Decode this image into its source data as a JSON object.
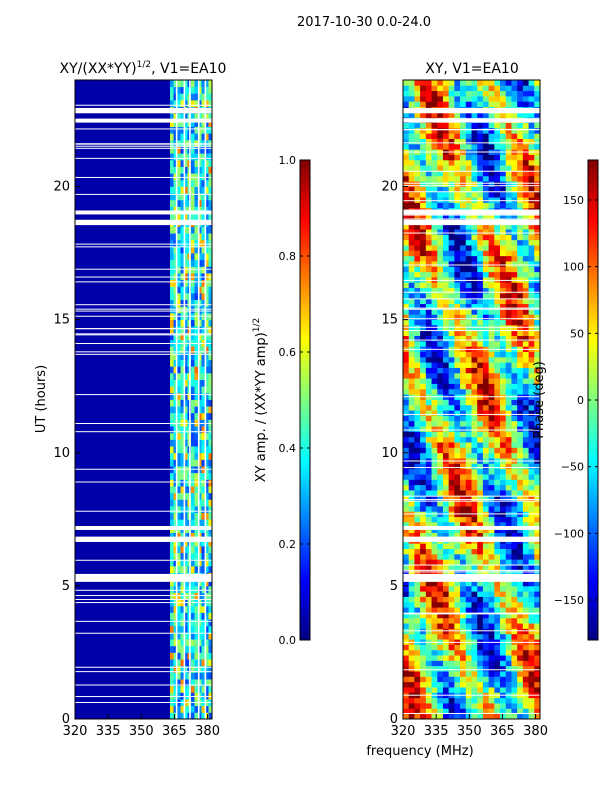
{
  "suptitle": "2017-10-30 0.0-24.0",
  "xlabel_shared": "frequency (MHz)",
  "chart_data": [
    {
      "type": "heatmap",
      "title_prefix": "XY/(XX*YY)",
      "title_sup": "1/2",
      "title_suffix": ", V1=EA10",
      "ylabel": "UT (hours)",
      "xlim": [
        320,
        382
      ],
      "ylim": [
        0,
        24
      ],
      "xticks": [
        "320",
        "335",
        "350",
        "365",
        "380"
      ],
      "xtick_values": [
        320,
        335,
        350,
        365,
        380
      ],
      "yticks": [
        "0",
        "5",
        "10",
        "15",
        "20"
      ],
      "ytick_values": [
        0,
        5,
        10,
        15,
        20
      ],
      "colorbar": {
        "label_prefix": "XY amp. / (XX*YY amp)",
        "label_sup": "1/2",
        "range": [
          0.0,
          1.0
        ],
        "ticks": [
          "0.0",
          "0.2",
          "0.4",
          "0.6",
          "0.8",
          "1.0"
        ],
        "tick_values": [
          0.0,
          0.2,
          0.4,
          0.6,
          0.8,
          1.0
        ],
        "colormap": "jet"
      },
      "gap_hours": [
        [
          5.15,
          5.45
        ],
        [
          6.65,
          6.85
        ],
        [
          7.1,
          7.25
        ],
        [
          18.55,
          18.75
        ],
        [
          18.95,
          19.1
        ],
        [
          22.4,
          22.55
        ],
        [
          22.75,
          22.95
        ]
      ],
      "signal_band_mhz": [
        363,
        382
      ],
      "rfi_channels_mhz": [
        366,
        369.5,
        372,
        376,
        379
      ]
    },
    {
      "type": "heatmap",
      "title": "XY, V1=EA10",
      "xlim": [
        320,
        382
      ],
      "ylim": [
        0,
        24
      ],
      "xticks": [
        "320",
        "335",
        "350",
        "365",
        "380"
      ],
      "xtick_values": [
        320,
        335,
        350,
        365,
        380
      ],
      "yticks": [
        "0",
        "5",
        "10",
        "15",
        "20"
      ],
      "ytick_values": [
        0,
        5,
        10,
        15,
        20
      ],
      "colorbar": {
        "label": "Phase (deg)",
        "range": [
          -180,
          180
        ],
        "ticks": [
          "150",
          "100",
          "50",
          "0",
          "−50",
          "−100",
          "−150"
        ],
        "tick_values": [
          150,
          100,
          50,
          0,
          -50,
          -100,
          -150
        ],
        "colormap": "jet"
      },
      "gap_hours": [
        [
          5.15,
          5.45
        ],
        [
          6.65,
          6.85
        ],
        [
          7.1,
          7.25
        ],
        [
          18.55,
          18.75
        ],
        [
          18.95,
          19.1
        ],
        [
          22.4,
          22.55
        ],
        [
          22.75,
          22.95
        ]
      ]
    }
  ]
}
